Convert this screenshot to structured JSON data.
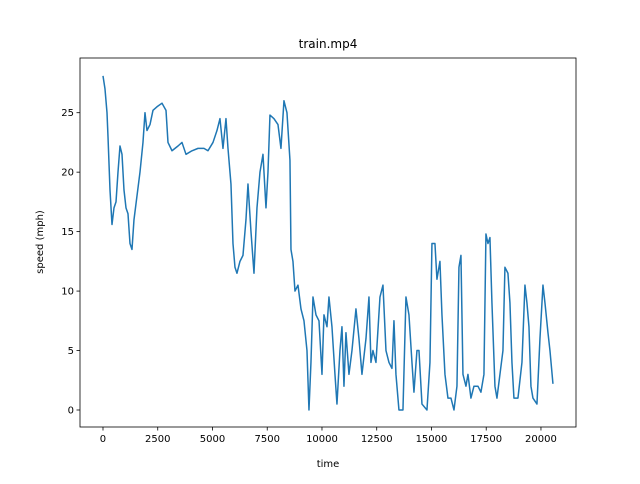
{
  "chart_data": {
    "type": "line",
    "title": "train.mp4",
    "x_label": "time",
    "y_label": "speed (mph)",
    "series": [
      {
        "color": "#1f77b4",
        "x": [
          0,
          91,
          183,
          228,
          320,
          411,
          502,
          594,
          685,
          776,
          868,
          959,
          1050,
          1142,
          1233,
          1324,
          1415,
          1552,
          1689,
          1826,
          1918,
          2009,
          2146,
          2283,
          2466,
          2694,
          2877,
          2968,
          3151,
          3425,
          3607,
          3790,
          4064,
          4338,
          4612,
          4794,
          5023,
          5205,
          5342,
          5479,
          5616,
          5708,
          5844,
          5936,
          6027,
          6118,
          6255,
          6392,
          6529,
          6621,
          6758,
          6895,
          7032,
          7169,
          7306,
          7443,
          7534,
          7625,
          7808,
          7991,
          8127,
          8264,
          8401,
          8538,
          8584,
          8675,
          8767,
          8904,
          9041,
          9178,
          9315,
          9406,
          9497,
          9589,
          9726,
          9863,
          10000,
          10091,
          10228,
          10319,
          10456,
          10593,
          10684,
          10821,
          10913,
          11004,
          11095,
          11232,
          11369,
          11552,
          11689,
          11826,
          12009,
          12146,
          12237,
          12328,
          12465,
          12648,
          12785,
          12922,
          13059,
          13196,
          13287,
          13378,
          13515,
          13698,
          13835,
          13972,
          14109,
          14200,
          14337,
          14429,
          14566,
          14794,
          14931,
          15022,
          15159,
          15250,
          15387,
          15479,
          15616,
          15753,
          15890,
          16027,
          16164,
          16255,
          16346,
          16438,
          16575,
          16666,
          16803,
          16940,
          17123,
          17259,
          17396,
          17488,
          17579,
          17670,
          17762,
          17899,
          17990,
          18127,
          18264,
          18355,
          18492,
          18584,
          18675,
          18766,
          18949,
          19132,
          19269,
          19360,
          19452,
          19543,
          19634,
          19817,
          19954,
          20091,
          20183,
          20320,
          20411,
          20548
        ],
        "values": [
          28.1,
          27,
          25,
          23,
          18.5,
          15.6,
          17,
          17.5,
          20,
          22.2,
          21.5,
          18.5,
          17,
          16.5,
          14,
          13.5,
          16,
          18,
          20,
          22.5,
          25,
          23.5,
          24,
          25.2,
          25.5,
          25.8,
          25.2,
          22.5,
          21.8,
          22.2,
          22.5,
          21.5,
          21.8,
          22,
          22,
          21.8,
          22.5,
          23.5,
          24.5,
          22,
          24.5,
          22,
          19,
          14,
          12,
          11.5,
          12.5,
          13,
          16,
          19,
          15,
          11.5,
          17,
          20,
          21.5,
          17,
          20,
          24.8,
          24.5,
          24,
          22,
          26,
          25,
          21,
          13.5,
          12.5,
          10,
          10.5,
          8.5,
          7.5,
          5,
          0,
          4,
          9.5,
          8,
          7.5,
          3,
          8,
          7,
          9.5,
          7,
          3,
          0.5,
          5,
          7,
          2,
          6.5,
          3,
          5,
          8.5,
          6,
          3,
          6,
          9.5,
          4,
          5,
          4,
          9.5,
          10.5,
          5,
          4,
          3.5,
          7.5,
          3,
          0,
          0,
          9.5,
          8,
          4,
          1.5,
          5,
          5,
          0.5,
          0,
          4,
          14,
          14,
          11,
          12.5,
          8,
          3,
          1,
          1,
          0,
          2,
          12,
          13,
          3,
          2,
          3,
          1,
          2,
          2,
          1.5,
          3,
          14.8,
          14,
          14.5,
          9,
          2,
          1,
          3,
          5,
          12,
          11.5,
          9,
          4,
          1,
          1,
          4,
          10.5,
          9,
          7,
          2,
          1,
          0.5,
          6,
          10.5,
          9,
          6.5,
          5,
          2.2
        ]
      }
    ],
    "xlim": [
      -1050,
      21600
    ],
    "ylim": [
      -1.43,
      29.6
    ],
    "xticks": [
      0,
      2500,
      5000,
      7500,
      10000,
      12500,
      15000,
      17500,
      20000
    ],
    "yticks": [
      0,
      5,
      10,
      15,
      20,
      25
    ]
  }
}
